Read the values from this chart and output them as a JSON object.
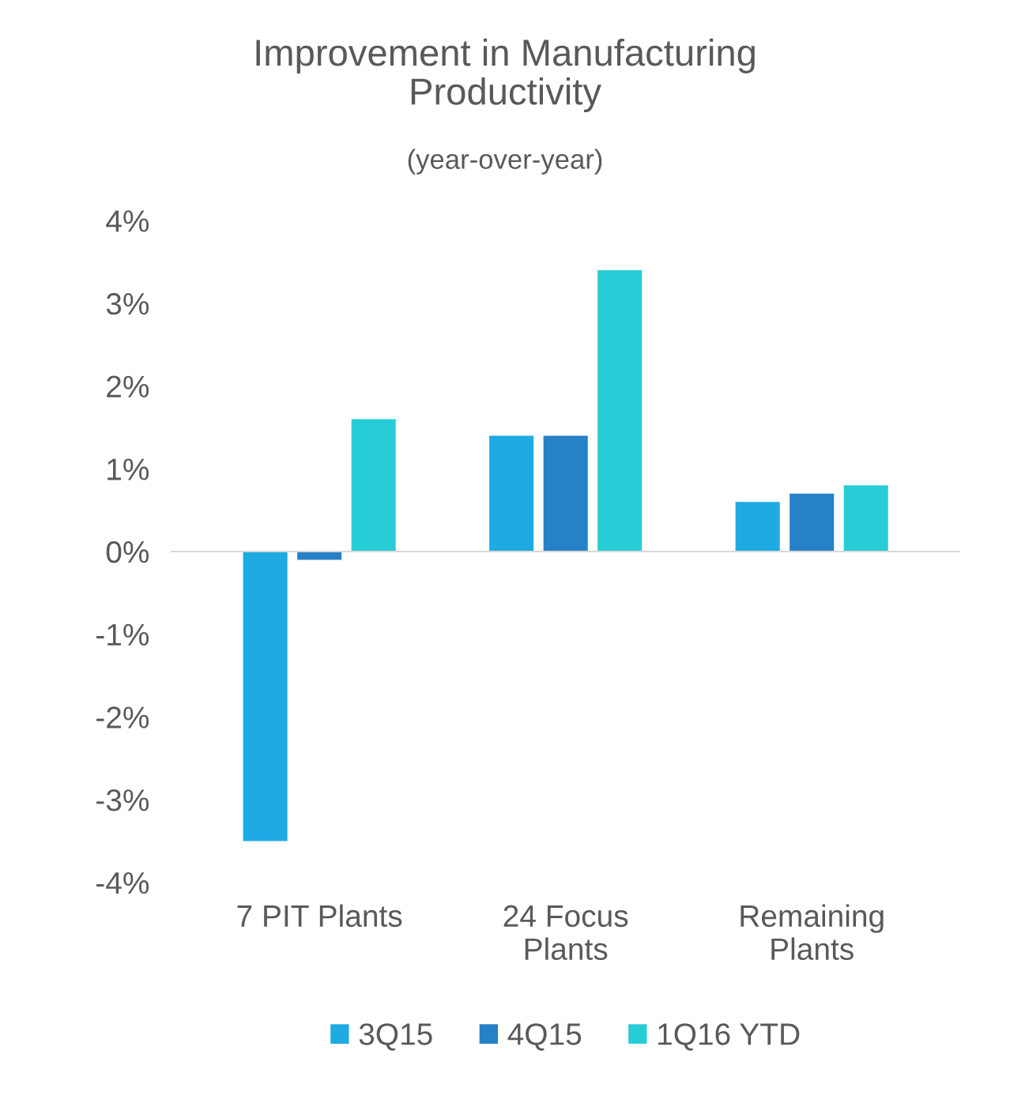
{
  "chart_data": {
    "type": "bar",
    "title": "Improvement in Manufacturing\nProductivity",
    "subtitle": "(year-over-year)",
    "categories": [
      "7 PIT Plants",
      "24 Focus\nPlants",
      "Remaining\nPlants"
    ],
    "series": [
      {
        "name": "3Q15",
        "color": "#1eaae2",
        "values": [
          -3.5,
          1.4,
          0.6
        ]
      },
      {
        "name": "4Q15",
        "color": "#2681c6",
        "values": [
          -0.1,
          1.4,
          0.7
        ]
      },
      {
        "name": "1Q16 YTD",
        "color": "#26cdd6",
        "values": [
          1.6,
          3.4,
          0.8
        ]
      }
    ],
    "ylim": [
      -4,
      4
    ],
    "yticks": [
      {
        "value": -4,
        "label": "-4%"
      },
      {
        "value": -3,
        "label": "-3%"
      },
      {
        "value": -2,
        "label": "-2%"
      },
      {
        "value": -1,
        "label": "-1%"
      },
      {
        "value": 0,
        "label": "0%"
      },
      {
        "value": 1,
        "label": "1%"
      },
      {
        "value": 2,
        "label": "2%"
      },
      {
        "value": 3,
        "label": "3%"
      },
      {
        "value": 4,
        "label": "4%"
      }
    ],
    "legend": "bottom"
  }
}
